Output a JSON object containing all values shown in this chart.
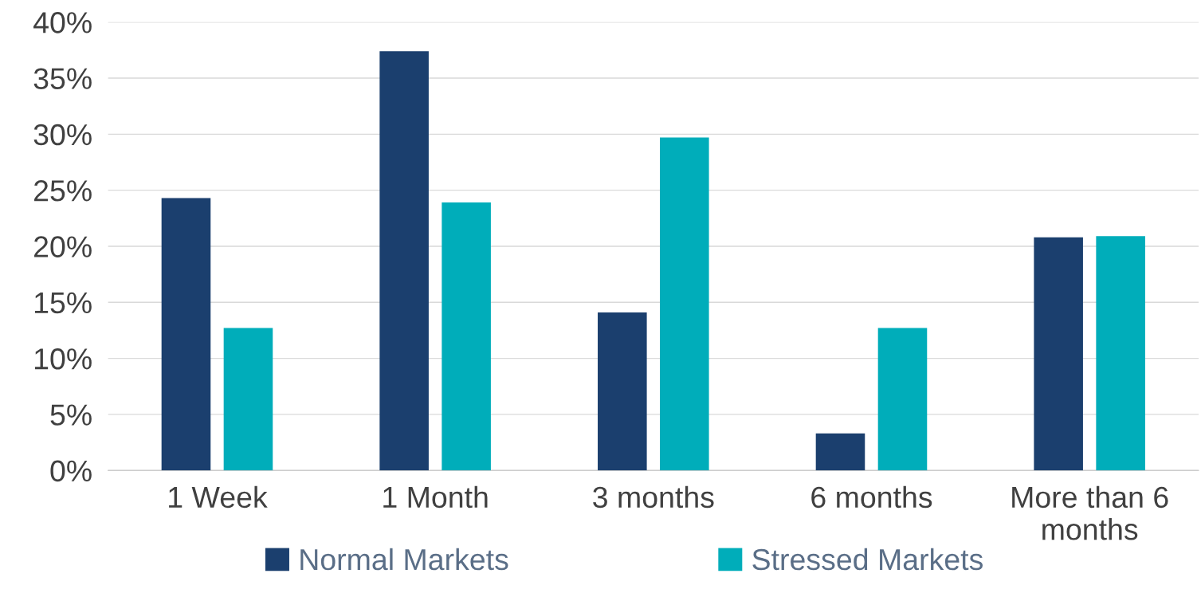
{
  "chart_data": {
    "type": "bar",
    "categories": [
      "1 Week",
      "1 Month",
      "3 months",
      "6 months",
      "More than 6\nmonths"
    ],
    "series": [
      {
        "name": "Normal Markets",
        "color": "#1b3f6e",
        "values": [
          24.3,
          37.4,
          14.1,
          3.3,
          20.8
        ]
      },
      {
        "name": "Stressed Markets",
        "color": "#00adba",
        "values": [
          12.7,
          23.9,
          29.7,
          12.7,
          20.9
        ]
      }
    ],
    "ylim": [
      0,
      40
    ],
    "yticks": [
      {
        "value": 0,
        "label": "0%"
      },
      {
        "value": 5,
        "label": "5%"
      },
      {
        "value": 10,
        "label": "10%"
      },
      {
        "value": 15,
        "label": "15%"
      },
      {
        "value": 20,
        "label": "20%"
      },
      {
        "value": 25,
        "label": "25%"
      },
      {
        "value": 30,
        "label": "30%"
      },
      {
        "value": 35,
        "label": "35%"
      },
      {
        "value": 40,
        "label": "40%"
      }
    ],
    "grid": "y",
    "legend": "bottom"
  }
}
